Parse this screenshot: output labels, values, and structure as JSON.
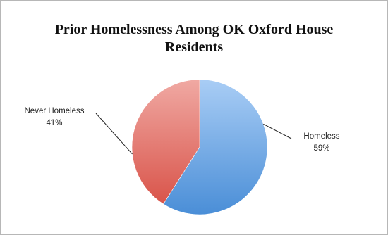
{
  "chart_data": {
    "type": "pie",
    "title_lines": [
      "Prior Homelessness Among OK Oxford House",
      "Residents"
    ],
    "slices": [
      {
        "name": "Homeless",
        "percent_label": "59%",
        "value": 59,
        "color_light": "#a9cdf5",
        "color_dark": "#4a8ed7"
      },
      {
        "name": "Never Homeless",
        "percent_label": "41%",
        "value": 41,
        "color_light": "#f0a9a3",
        "color_dark": "#d9544a"
      }
    ],
    "legend": "none",
    "data_labels": "outside with leader lines"
  }
}
